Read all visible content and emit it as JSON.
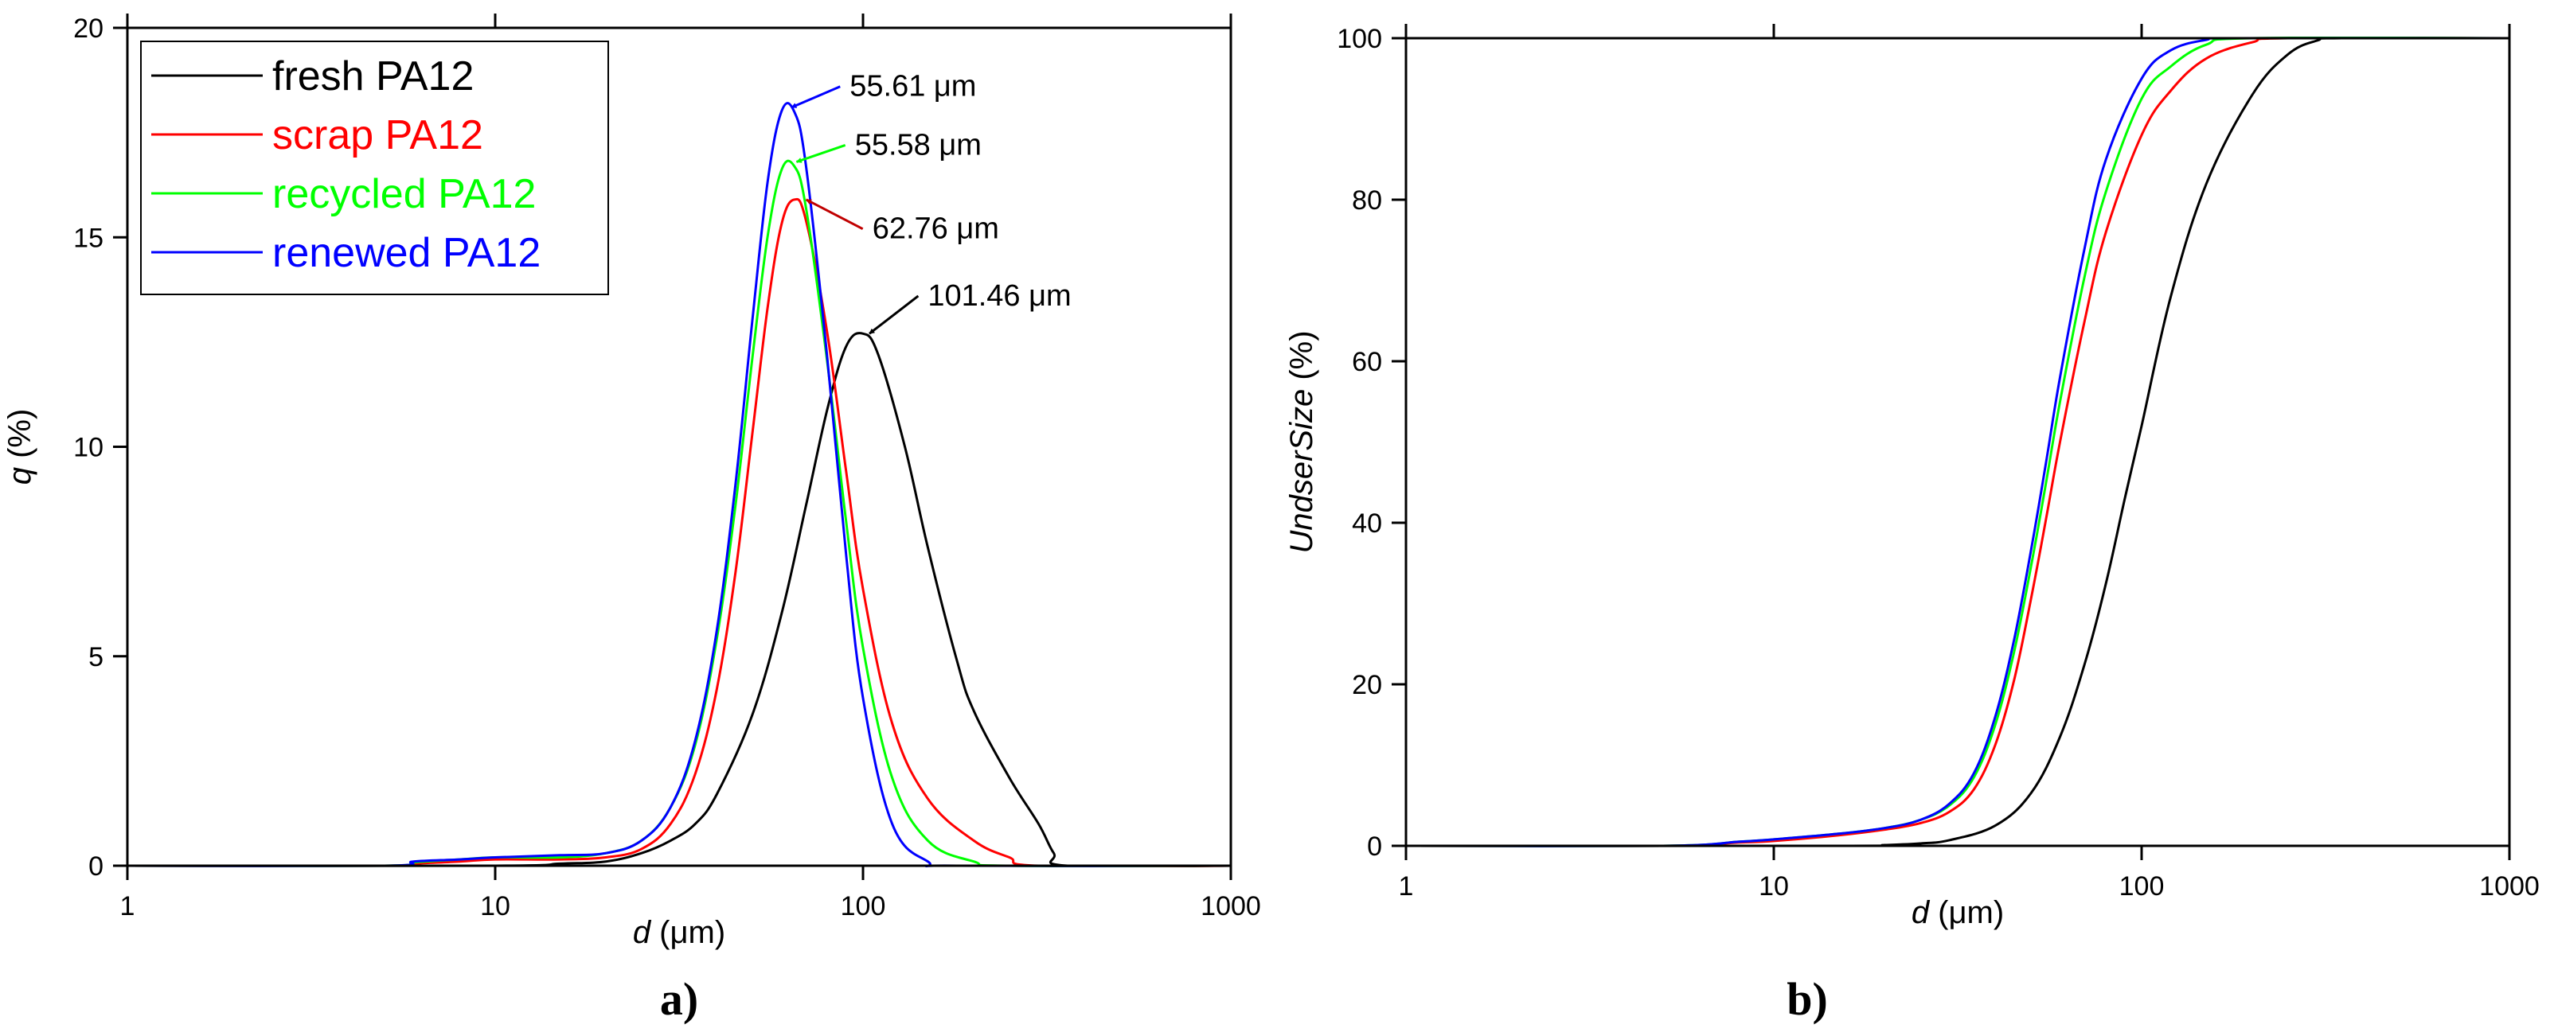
{
  "chart_data": [
    {
      "type": "line",
      "panel_label": "a)",
      "title": "",
      "xlabel": "d (μm)",
      "ylabel": "q (%)",
      "xscale": "log",
      "xlim": [
        1,
        1000
      ],
      "ylim": [
        0,
        20
      ],
      "xticks": [
        1,
        10,
        100,
        1000
      ],
      "xtick_labels": [
        "1",
        "10",
        "100",
        "1000"
      ],
      "yticks": [
        0,
        5,
        10,
        15,
        20
      ],
      "ytick_labels": [
        "0",
        "5",
        "10",
        "15",
        "20"
      ],
      "grid": false,
      "legend_position": "top-left",
      "series": [
        {
          "name": "fresh PA12",
          "color": "#000000",
          "x": [
            1,
            10,
            15,
            20,
            25,
            30,
            35,
            40,
            50,
            60,
            70,
            80,
            90,
            100,
            110,
            130,
            150,
            180,
            200,
            250,
            300,
            330,
            360,
            1000
          ],
          "y": [
            0,
            0,
            0.05,
            0.1,
            0.3,
            0.6,
            1.0,
            1.7,
            3.6,
            6.0,
            8.6,
            10.9,
            12.4,
            12.7,
            12.2,
            10.0,
            7.6,
            4.9,
            3.7,
            2.1,
            1.0,
            0.3,
            0,
            0
          ]
        },
        {
          "name": "scrap PA12",
          "color": "#ff0000",
          "x": [
            1,
            5,
            6,
            8,
            10,
            15,
            20,
            25,
            30,
            35,
            40,
            45,
            50,
            55,
            60,
            65,
            70,
            80,
            90,
            100,
            120,
            150,
            200,
            250,
            300,
            1000
          ],
          "y": [
            0,
            0,
            0.05,
            0.1,
            0.15,
            0.15,
            0.2,
            0.4,
            1.0,
            2.2,
            4.2,
            7.0,
            10.3,
            13.3,
            15.3,
            15.9,
            15.4,
            12.7,
            9.4,
            6.6,
            3.4,
            1.6,
            0.6,
            0.2,
            0,
            0
          ]
        },
        {
          "name": "recycled PA12",
          "color": "#00ff00",
          "x": [
            1,
            5,
            6,
            8,
            10,
            15,
            20,
            25,
            30,
            35,
            40,
            45,
            50,
            55,
            60,
            65,
            70,
            80,
            90,
            100,
            120,
            150,
            200,
            250,
            1000
          ],
          "y": [
            0,
            0,
            0.08,
            0.15,
            0.2,
            0.2,
            0.3,
            0.6,
            1.4,
            2.9,
            5.4,
            8.6,
            12.1,
            15.0,
            16.6,
            16.7,
            15.7,
            12.0,
            8.2,
            5.2,
            2.1,
            0.6,
            0.1,
            0,
            0
          ]
        },
        {
          "name": "renewed PA12",
          "color": "#0000ff",
          "x": [
            1,
            5,
            6,
            8,
            10,
            15,
            20,
            25,
            30,
            35,
            40,
            45,
            50,
            55,
            60,
            65,
            70,
            80,
            90,
            100,
            120,
            150,
            180,
            1000
          ],
          "y": [
            0,
            0,
            0.1,
            0.15,
            0.2,
            0.25,
            0.3,
            0.6,
            1.4,
            3.0,
            5.6,
            9.1,
            13.0,
            16.3,
            18.0,
            18.0,
            16.7,
            12.1,
            7.4,
            4.0,
            1.0,
            0.1,
            0,
            0
          ]
        }
      ],
      "annotations": [
        {
          "text": "55.61 μm",
          "target": [
            62,
            18.1
          ],
          "label_at": [
            92,
            18.6
          ],
          "color": "#0000ff"
        },
        {
          "text": "55.58 μm",
          "target": [
            64,
            16.8
          ],
          "label_at": [
            95,
            17.2
          ],
          "color": "#00ff00"
        },
        {
          "text": "62.76 μm",
          "target": [
            68,
            15.9
          ],
          "label_at": [
            106,
            15.2
          ],
          "color": "#c00000"
        },
        {
          "text": "101.46 μm",
          "target": [
            101,
            12.7
          ],
          "label_at": [
            150,
            13.6
          ],
          "color": "#000000"
        }
      ]
    },
    {
      "type": "line",
      "panel_label": "b)",
      "title": "",
      "xlabel": "d (μm)",
      "ylabel": "UndserSize (%)",
      "xscale": "log",
      "xlim": [
        1,
        1000
      ],
      "ylim": [
        0,
        100
      ],
      "xticks": [
        1,
        10,
        100,
        1000
      ],
      "xtick_labels": [
        "1",
        "10",
        "100",
        "1000"
      ],
      "yticks": [
        0,
        20,
        40,
        60,
        80,
        100
      ],
      "ytick_labels": [
        "0",
        "20",
        "40",
        "60",
        "80",
        "100"
      ],
      "grid": false,
      "legend_position": "none",
      "series": [
        {
          "name": "fresh PA12",
          "color": "#000000",
          "x": [
            1,
            15,
            20,
            25,
            30,
            40,
            50,
            60,
            70,
            80,
            90,
            100,
            120,
            150,
            200,
            250,
            300,
            350,
            1000
          ],
          "y": [
            0,
            0,
            0.1,
            0.3,
            0.7,
            2.5,
            6.5,
            13.5,
            22.5,
            32.5,
            43,
            52,
            68,
            82,
            93,
            98,
            99.7,
            100,
            100
          ]
        },
        {
          "name": "scrap PA12",
          "color": "#ff0000",
          "x": [
            1,
            5,
            8,
            10,
            15,
            20,
            25,
            30,
            35,
            40,
            45,
            50,
            55,
            60,
            70,
            80,
            100,
            120,
            150,
            200,
            250,
            1000
          ],
          "y": [
            0,
            0,
            0.4,
            0.6,
            1.3,
            2.0,
            2.8,
            4.2,
            7.0,
            12.5,
            20.5,
            30.5,
            40.5,
            50,
            65,
            76,
            88,
            93.5,
            97.5,
            99.5,
            100,
            100
          ]
        },
        {
          "name": "recycled PA12",
          "color": "#00ff00",
          "x": [
            1,
            5,
            8,
            10,
            15,
            20,
            25,
            30,
            35,
            40,
            45,
            50,
            55,
            60,
            70,
            80,
            100,
            120,
            150,
            200,
            1000
          ],
          "y": [
            0,
            0,
            0.5,
            0.8,
            1.5,
            2.2,
            3.2,
            5.0,
            8.5,
            15,
            24,
            34.5,
            45,
            55,
            70.5,
            81,
            92.5,
            96.5,
            99.2,
            100,
            100
          ]
        },
        {
          "name": "renewed PA12",
          "color": "#0000ff",
          "x": [
            1,
            5,
            8,
            10,
            15,
            20,
            25,
            30,
            35,
            40,
            45,
            50,
            55,
            60,
            70,
            80,
            100,
            120,
            150,
            180,
            1000
          ],
          "y": [
            0,
            0,
            0.5,
            0.8,
            1.5,
            2.2,
            3.2,
            5.2,
            9.0,
            16,
            25.5,
            36.5,
            47.5,
            58,
            74,
            85,
            95,
            98.5,
            99.8,
            100,
            100
          ]
        }
      ]
    }
  ]
}
